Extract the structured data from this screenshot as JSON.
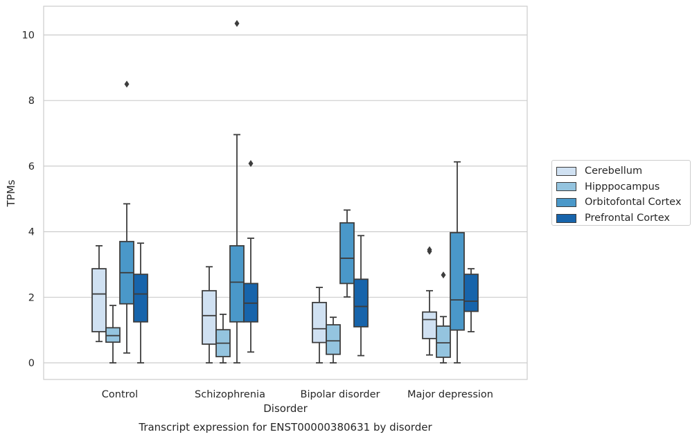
{
  "chart_data": {
    "type": "boxplot",
    "caption": "Transcript expression for ENST00000380631 by disorder",
    "xlabel": "Disorder",
    "ylabel": "TPMs",
    "ylim": [
      -0.5,
      10.85
    ],
    "yticks": [
      0,
      2,
      4,
      6,
      8,
      10
    ],
    "grid": true,
    "legend_position": "right",
    "categories": [
      "Control",
      "Schizophrenia",
      "Bipolar disorder",
      "Major depression"
    ],
    "series": [
      {
        "name": "Cerebellum",
        "color": "#d0e1f2",
        "boxes": [
          {
            "whislo": 0.65,
            "q1": 0.95,
            "med": 2.1,
            "q3": 2.87,
            "whishi": 3.57,
            "fliers": []
          },
          {
            "whislo": 0.0,
            "q1": 0.57,
            "med": 1.44,
            "q3": 2.2,
            "whishi": 2.93,
            "fliers": []
          },
          {
            "whislo": 0.0,
            "q1": 0.62,
            "med": 1.04,
            "q3": 1.84,
            "whishi": 2.3,
            "fliers": []
          },
          {
            "whislo": 0.24,
            "q1": 0.74,
            "med": 1.32,
            "q3": 1.55,
            "whishi": 2.2,
            "fliers": [
              3.4,
              3.45
            ]
          }
        ]
      },
      {
        "name": "Hipppocampus",
        "color": "#94c4df",
        "boxes": [
          {
            "whislo": 0.0,
            "q1": 0.63,
            "med": 0.83,
            "q3": 1.07,
            "whishi": 1.75,
            "fliers": []
          },
          {
            "whislo": 0.0,
            "q1": 0.19,
            "med": 0.6,
            "q3": 1.01,
            "whishi": 1.48,
            "fliers": []
          },
          {
            "whislo": 0.0,
            "q1": 0.26,
            "med": 0.67,
            "q3": 1.16,
            "whishi": 1.39,
            "fliers": []
          },
          {
            "whislo": 0.0,
            "q1": 0.17,
            "med": 0.61,
            "q3": 1.12,
            "whishi": 1.41,
            "fliers": [
              2.68
            ]
          }
        ]
      },
      {
        "name": "Orbitofontal Cortex",
        "color": "#4a98c9",
        "boxes": [
          {
            "whislo": 0.3,
            "q1": 1.8,
            "med": 2.75,
            "q3": 3.7,
            "whishi": 4.85,
            "fliers": [
              8.5
            ]
          },
          {
            "whislo": 0.0,
            "q1": 1.25,
            "med": 2.46,
            "q3": 3.57,
            "whishi": 6.96,
            "fliers": [
              10.35
            ]
          },
          {
            "whislo": 2.01,
            "q1": 2.42,
            "med": 3.19,
            "q3": 4.27,
            "whishi": 4.66,
            "fliers": []
          },
          {
            "whislo": 0.0,
            "q1": 1.0,
            "med": 1.92,
            "q3": 3.97,
            "whishi": 6.13,
            "fliers": []
          }
        ]
      },
      {
        "name": "Prefrontal Cortex",
        "color": "#1764ab",
        "boxes": [
          {
            "whislo": 0.0,
            "q1": 1.25,
            "med": 2.1,
            "q3": 2.7,
            "whishi": 3.65,
            "fliers": []
          },
          {
            "whislo": 0.33,
            "q1": 1.25,
            "med": 1.82,
            "q3": 2.42,
            "whishi": 3.8,
            "fliers": [
              6.08
            ]
          },
          {
            "whislo": 0.22,
            "q1": 1.1,
            "med": 1.72,
            "q3": 2.55,
            "whishi": 3.88,
            "fliers": []
          },
          {
            "whislo": 0.95,
            "q1": 1.57,
            "med": 1.88,
            "q3": 2.7,
            "whishi": 2.87,
            "fliers": []
          }
        ]
      }
    ]
  }
}
